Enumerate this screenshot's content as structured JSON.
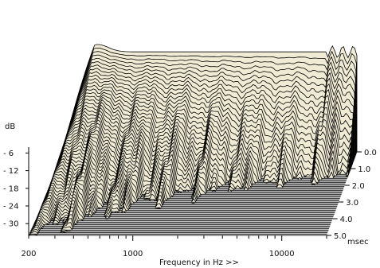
{
  "chart_data": {
    "type": "waterfall",
    "title": "",
    "ylabel": "dB",
    "xlabel": "Frequency in Hz >>",
    "x_scale": "log",
    "xlim": [
      200,
      20000
    ],
    "x_ticks": [
      {
        "value": 200,
        "label": "200"
      },
      {
        "value": 1000,
        "label": "1000"
      },
      {
        "value": 10000,
        "label": "10000"
      }
    ],
    "ylim": [
      -34,
      3
    ],
    "y_ticks": [
      {
        "value": -6,
        "label": "- 6"
      },
      {
        "value": -12,
        "label": "- 12"
      },
      {
        "value": -18,
        "label": "- 18"
      },
      {
        "value": -24,
        "label": "- 24"
      },
      {
        "value": -30,
        "label": "- 30"
      }
    ],
    "time_unit": "msec",
    "time_range": [
      0,
      5
    ],
    "time_ticks": [
      {
        "value": 0.0,
        "label": "0.0"
      },
      {
        "value": 1.0,
        "label": "1.0"
      },
      {
        "value": 2.0,
        "label": "2.0"
      },
      {
        "value": 3.0,
        "label": "3.0"
      },
      {
        "value": 4.0,
        "label": "4.0"
      },
      {
        "value": 5.0,
        "label": "5.0"
      }
    ],
    "colors": {
      "surface": "#efebd5",
      "line": "#000000",
      "background": "#ffffff"
    }
  }
}
